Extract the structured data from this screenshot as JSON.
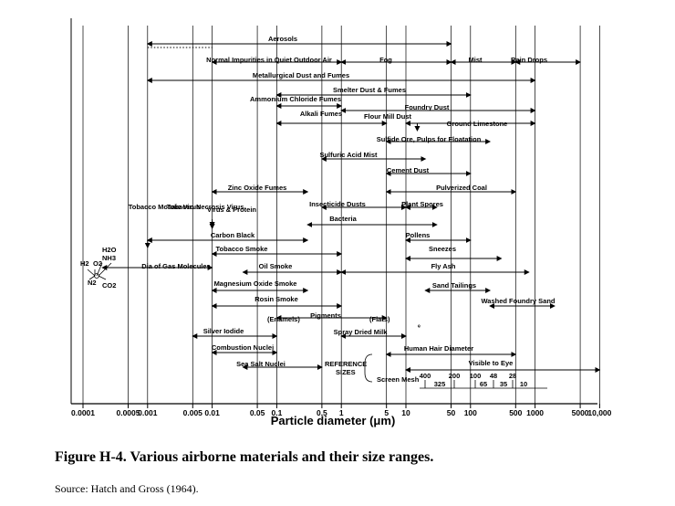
{
  "chart_data": {
    "type": "range",
    "xscale": "log",
    "xlim": [
      0.0001,
      10000
    ],
    "xlabel": "Particle diameter (μm)",
    "ticks": [
      {
        "label": "0.0001",
        "value": 0.0001
      },
      {
        "label": "0.0005",
        "value": 0.0005
      },
      {
        "label": "0.001",
        "value": 0.001
      },
      {
        "label": "0.005",
        "value": 0.005
      },
      {
        "label": "0.01",
        "value": 0.01
      },
      {
        "label": "0.05",
        "value": 0.05
      },
      {
        "label": "0.1",
        "value": 0.1
      },
      {
        "label": "0.5",
        "value": 0.5
      },
      {
        "label": "1",
        "value": 1
      },
      {
        "label": "5",
        "value": 5
      },
      {
        "label": "10",
        "value": 10
      },
      {
        "label": "50",
        "value": 50
      },
      {
        "label": "100",
        "value": 100
      },
      {
        "label": "500",
        "value": 500
      },
      {
        "label": "1000",
        "value": 1000
      },
      {
        "label": "5000",
        "value": 5000
      },
      {
        "label": "10,000",
        "value": 10000
      }
    ],
    "ranges": [
      {
        "label": "Aerosols",
        "from": 0.001,
        "to": 50,
        "dotted_from": 0.001,
        "dotted_to": 0.01
      },
      {
        "label": "Normal Impurities in Quiet Outdoor Air",
        "from": 0.01,
        "to": 1
      },
      {
        "label": "Fog",
        "from": 1,
        "to": 50
      },
      {
        "label": "Mist",
        "from": 50,
        "to": 500
      },
      {
        "label": "Rain Drops",
        "from": 500,
        "to": 5000
      },
      {
        "label": "Metallurgical Dust and Fumes",
        "from": 0.001,
        "to": 1000
      },
      {
        "label": "Smelter Dust & Fumes",
        "from": 0.1,
        "to": 100
      },
      {
        "label": "Ammonium Chloride Fumes",
        "from": 0.1,
        "to": 1
      },
      {
        "label": "Foundry Dust",
        "from": 1,
        "to": 1000
      },
      {
        "label": "Alkali Fumes",
        "from": 0.1,
        "to": 5
      },
      {
        "label": "Flour Mill Dust",
        "from": 15,
        "to": 15
      },
      {
        "label": "Ground Limestone",
        "from": 10,
        "to": 1000
      },
      {
        "label": "Sulfide Ore, Pulps for Floatation",
        "from": 5,
        "to": 200
      },
      {
        "label": "Sulfuric Acid Mist",
        "from": 0.5,
        "to": 20
      },
      {
        "label": "Cement Dust",
        "from": 5,
        "to": 100
      },
      {
        "label": "Zinc Oxide Fumes",
        "from": 0.01,
        "to": 0.3
      },
      {
        "label": "Pulverized Coal",
        "from": 5,
        "to": 500
      },
      {
        "label": "Tobacco Mosaic Virus",
        "from": 0.001,
        "to": 0.001
      },
      {
        "label": "Tobacco Necrosis Virus",
        "from": 0.01,
        "to": 0.01
      },
      {
        "label": "Virus & Protein",
        "from": 0.01,
        "to": 0.1
      },
      {
        "label": "Insecticide Dusts",
        "from": 0.5,
        "to": 10
      },
      {
        "label": "Plant Spores",
        "from": 10,
        "to": 30
      },
      {
        "label": "Bacteria",
        "from": 0.3,
        "to": 30
      },
      {
        "label": "Carbon Black",
        "from": 0.001,
        "to": 0.3
      },
      {
        "label": "Pollens",
        "from": 10,
        "to": 100
      },
      {
        "label": "Tobacco Smoke",
        "from": 0.01,
        "to": 1
      },
      {
        "label": "Sneezes",
        "from": 10,
        "to": 300
      },
      {
        "label": "Dia of Gas Molecules",
        "from": 0.0002,
        "to": 0.01
      },
      {
        "label": "Oil Smoke",
        "from": 0.03,
        "to": 1
      },
      {
        "label": "Fly Ash",
        "from": 1,
        "to": 800
      },
      {
        "label": "Magnesium Oxide Smoke",
        "from": 0.01,
        "to": 0.3
      },
      {
        "label": "Sand Tailings",
        "from": 20,
        "to": 200
      },
      {
        "label": "Rosin Smoke",
        "from": 0.01,
        "to": 1
      },
      {
        "label": "Washed Foundry Sand",
        "from": 200,
        "to": 2000
      },
      {
        "label": "Pigments",
        "from": 0.1,
        "to": 5
      },
      {
        "label": "Silver Iodide",
        "from": 0.005,
        "to": 0.1
      },
      {
        "label": "Spray Dried Milk",
        "from": 1,
        "to": 10
      },
      {
        "label": "Combustion Nuclei",
        "from": 0.01,
        "to": 0.1
      },
      {
        "label": "Human Hair Diameter",
        "from": 5,
        "to": 500
      },
      {
        "label": "Sea Salt Nuclei",
        "from": 0.03,
        "to": 0.5
      },
      {
        "label": "Visible to Eye",
        "from": 10,
        "to": 10000
      }
    ],
    "annotations": [
      "(Enamels)",
      "(Flats)",
      "REFERENCE SIZES",
      "Screen Mesh"
    ],
    "screen_mesh": {
      "row1": [
        "400",
        "200",
        "100",
        "48",
        "28"
      ],
      "row2": [
        "325",
        "65",
        "35",
        "10"
      ]
    },
    "molecules": [
      "H2O",
      "NH3",
      "H2",
      "O2",
      "N2",
      "CO2"
    ]
  },
  "caption": "Figure H-4.  Various airborne materials and their size ranges.",
  "source": "Source:  Hatch and Gross (1964)."
}
